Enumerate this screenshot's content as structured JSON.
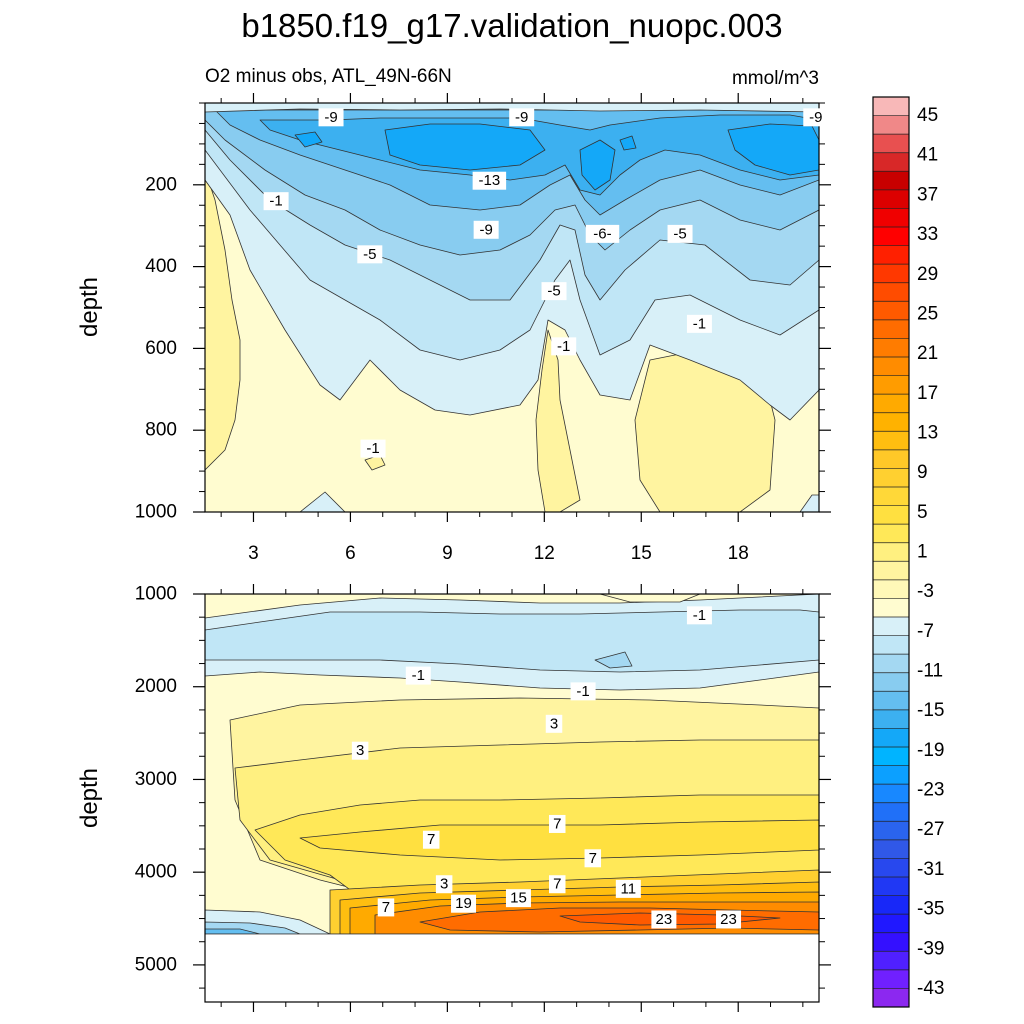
{
  "title": "b1850.f19_g17.validation_nuopc.003",
  "subtitle_left": "O2 minus obs, ATL_49N-66N",
  "subtitle_right": "mmol/m^3",
  "chart_data": [
    {
      "type": "heatmap",
      "name": "upper-ocean",
      "title": "O2 minus obs, ATL_49N-66N",
      "units": "mmol/m^3",
      "xlabel": "",
      "ylabel": "depth",
      "xlim": [
        1.5,
        20.5
      ],
      "ylim": [
        1000,
        0
      ],
      "x_ticks": [
        "3",
        "6",
        "9",
        "12",
        "15",
        "18"
      ],
      "x_tick_values": [
        3,
        6,
        9,
        12,
        15,
        18
      ],
      "y_ticks": [
        "200",
        "400",
        "600",
        "800",
        "1000"
      ],
      "y_tick_values": [
        200,
        400,
        600,
        800,
        1000
      ],
      "contour_labels": [
        {
          "text": "-9",
          "x": 5.4,
          "depth": 35
        },
        {
          "text": "-9",
          "x": 11.3,
          "depth": 35
        },
        {
          "text": "-9",
          "x": 20.4,
          "depth": 35
        },
        {
          "text": "-13",
          "x": 10.3,
          "depth": 190
        },
        {
          "text": "-1",
          "x": 3.7,
          "depth": 240
        },
        {
          "text": "-9",
          "x": 10.2,
          "depth": 310
        },
        {
          "text": "-6-",
          "x": 13.8,
          "depth": 320
        },
        {
          "text": "-5",
          "x": 16.2,
          "depth": 320
        },
        {
          "text": "-5",
          "x": 6.6,
          "depth": 370
        },
        {
          "text": "-5",
          "x": 12.3,
          "depth": 460
        },
        {
          "text": "-1",
          "x": 16.8,
          "depth": 540
        },
        {
          "text": "-1",
          "x": 12.6,
          "depth": 595
        },
        {
          "text": "-1",
          "x": 6.7,
          "depth": 845
        }
      ],
      "samples": [
        {
          "x": 2,
          "depth": 50,
          "value": -3
        },
        {
          "x": 9,
          "depth": 100,
          "value": -15
        },
        {
          "x": 13.5,
          "depth": 150,
          "value": -15
        },
        {
          "x": 20,
          "depth": 120,
          "value": -15
        },
        {
          "x": 9,
          "depth": 400,
          "value": -7
        },
        {
          "x": 2.5,
          "depth": 500,
          "value": 3
        },
        {
          "x": 9,
          "depth": 900,
          "value": 1
        },
        {
          "x": 12.5,
          "depth": 850,
          "value": 3
        },
        {
          "x": 16.5,
          "depth": 800,
          "value": 3
        }
      ]
    },
    {
      "type": "heatmap",
      "name": "deep-ocean",
      "title": "",
      "units": "mmol/m^3",
      "xlabel": "",
      "ylabel": "depth",
      "xlim": [
        1.5,
        20.5
      ],
      "ylim": [
        5400,
        1000
      ],
      "x_tick_values": [
        3,
        6,
        9,
        12,
        15,
        18
      ],
      "y_ticks": [
        "1000",
        "2000",
        "3000",
        "4000",
        "5000"
      ],
      "y_tick_values": [
        1000,
        2000,
        3000,
        4000,
        5000
      ],
      "contour_labels": [
        {
          "text": "-1",
          "x": 16.8,
          "depth": 1230
        },
        {
          "text": "-1",
          "x": 8.1,
          "depth": 1880
        },
        {
          "text": "-1",
          "x": 13.2,
          "depth": 2050
        },
        {
          "text": "3",
          "x": 12.3,
          "depth": 2400
        },
        {
          "text": "3",
          "x": 6.3,
          "depth": 2690
        },
        {
          "text": "7",
          "x": 12.4,
          "depth": 3480
        },
        {
          "text": "7",
          "x": 8.5,
          "depth": 3650
        },
        {
          "text": "7",
          "x": 13.5,
          "depth": 3850
        },
        {
          "text": "3",
          "x": 8.9,
          "depth": 4130
        },
        {
          "text": "7",
          "x": 12.4,
          "depth": 4130
        },
        {
          "text": "11",
          "x": 14.6,
          "depth": 4180
        },
        {
          "text": "15",
          "x": 11.2,
          "depth": 4280
        },
        {
          "text": "7",
          "x": 7.1,
          "depth": 4380
        },
        {
          "text": "19",
          "x": 9.5,
          "depth": 4340
        },
        {
          "text": "23",
          "x": 15.7,
          "depth": 4510
        },
        {
          "text": "23",
          "x": 17.7,
          "depth": 4510
        }
      ],
      "samples": [
        {
          "x": 10,
          "depth": 1100,
          "value": 1
        },
        {
          "x": 10,
          "depth": 1500,
          "value": -3
        },
        {
          "x": 10,
          "depth": 2500,
          "value": 5
        },
        {
          "x": 12,
          "depth": 3700,
          "value": 9
        },
        {
          "x": 2,
          "depth": 3500,
          "value": 1
        },
        {
          "x": 12,
          "depth": 4400,
          "value": 23
        },
        {
          "x": 2.5,
          "depth": 4550,
          "value": -7
        }
      ]
    }
  ],
  "colorbar": {
    "levels": [
      "45",
      "41",
      "37",
      "33",
      "29",
      "25",
      "21",
      "17",
      "13",
      "9",
      "5",
      "1",
      "-3",
      "-7",
      "-11",
      "-15",
      "-19",
      "-23",
      "-27",
      "-31",
      "-35",
      "-39",
      "-43"
    ],
    "colors": [
      "#f8b8b8",
      "#f08888",
      "#e85050",
      "#d82828",
      "#c80000",
      "#dc0000",
      "#f00000",
      "#ff0000",
      "#ff2000",
      "#ff3800",
      "#ff4c00",
      "#ff5a00",
      "#ff6c00",
      "#ff7c00",
      "#ff8c00",
      "#ff9c00",
      "#ffaa00",
      "#ffb200",
      "#ffbe10",
      "#ffc828",
      "#ffd030",
      "#ffd838",
      "#ffe040",
      "#ffe858",
      "#fff080",
      "#fff4a0",
      "#fff8b8",
      "#fffcd0",
      "#d8f0f8",
      "#c0e6f6",
      "#a4d8f2",
      "#88ccf0",
      "#64bef0",
      "#3cb0f0",
      "#14a8f8",
      "#00b4ff",
      "#0ca0ff",
      "#1888ff",
      "#2070f8",
      "#2a64ee",
      "#3058e8",
      "#2848ee",
      "#2038f4",
      "#1828f8",
      "#2018ff",
      "#3410ff",
      "#5020ff",
      "#7020ff",
      "#8c28f0"
    ]
  }
}
